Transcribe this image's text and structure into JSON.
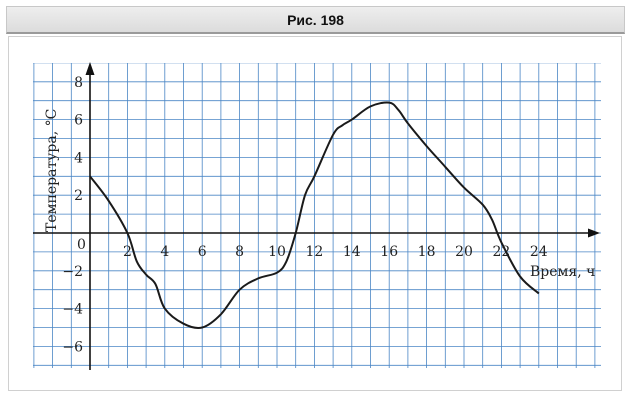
{
  "figure": {
    "title": "Рис. 198"
  },
  "chart_data": {
    "type": "line",
    "xlabel": "Время, ч",
    "ylabel": "Температура, °С",
    "xlim": [
      -3,
      27
    ],
    "ylim": [
      -7,
      9
    ],
    "grid": true,
    "x_ticks": [
      2,
      4,
      6,
      8,
      10,
      12,
      14,
      16,
      18,
      20,
      22,
      24
    ],
    "y_ticks": [
      -6,
      -4,
      -2,
      2,
      4,
      6,
      8
    ],
    "origin_label": "0",
    "series": [
      {
        "name": "",
        "x": [
          0,
          1,
          2,
          2.5,
          3,
          3.5,
          4,
          5,
          6,
          7,
          8,
          9,
          10,
          10.5,
          11,
          11.5,
          12,
          13,
          13.5,
          14,
          15,
          16,
          16.5,
          17,
          18,
          19,
          20,
          21,
          21.5,
          22,
          23,
          24
        ],
        "y": [
          3,
          1.7,
          0,
          -1.5,
          -2.2,
          -2.7,
          -4,
          -4.8,
          -5,
          -4.3,
          -3,
          -2.4,
          -2.1,
          -1.5,
          0,
          2,
          3,
          5.2,
          5.7,
          6,
          6.7,
          6.9,
          6.5,
          5.8,
          4.6,
          3.5,
          2.4,
          1.5,
          0.7,
          -0.5,
          -2.3,
          -3.2
        ]
      }
    ]
  }
}
